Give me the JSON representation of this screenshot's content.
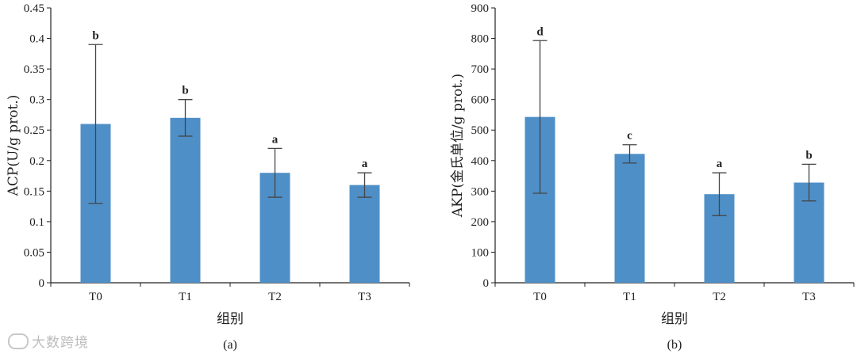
{
  "chart_data": [
    {
      "type": "bar",
      "panel": "(a)",
      "categories": [
        "T0",
        "T1",
        "T2",
        "T3"
      ],
      "values": [
        0.26,
        0.27,
        0.18,
        0.16
      ],
      "error_high": [
        0.39,
        0.3,
        0.22,
        0.18
      ],
      "error_low": [
        0.13,
        0.24,
        0.14,
        0.14
      ],
      "significance": [
        "b",
        "b",
        "a",
        "a"
      ],
      "xlabel": "组别",
      "ylabel": "ACP(U/g prot.)",
      "ylim": [
        0,
        0.45
      ],
      "yticks": [
        0,
        0.05,
        0.1,
        0.15,
        0.2,
        0.25,
        0.3,
        0.35,
        0.4,
        0.45
      ],
      "ytick_labels": [
        "0",
        "0.05",
        "0.1",
        "0.15",
        "0.2",
        "0.25",
        "0.3",
        "0.35",
        "0.4",
        "0.45"
      ],
      "bar_color": "#4f8fc7",
      "grid": false
    },
    {
      "type": "bar",
      "panel": "(b)",
      "categories": [
        "T0",
        "T1",
        "T2",
        "T3"
      ],
      "values": [
        543,
        422,
        290,
        328
      ],
      "error_high": [
        793,
        452,
        360,
        388
      ],
      "error_low": [
        293,
        392,
        220,
        268
      ],
      "significance": [
        "d",
        "c",
        "a",
        "b"
      ],
      "xlabel": "组别",
      "ylabel": "AKP(金氏单位/g prot.)",
      "ylim": [
        0,
        900
      ],
      "yticks": [
        0,
        100,
        200,
        300,
        400,
        500,
        600,
        700,
        800,
        900
      ],
      "ytick_labels": [
        "0",
        "100",
        "200",
        "300",
        "400",
        "500",
        "600",
        "700",
        "800",
        "900"
      ],
      "bar_color": "#4f8fc7",
      "grid": false
    }
  ],
  "watermark": "大数跨境"
}
